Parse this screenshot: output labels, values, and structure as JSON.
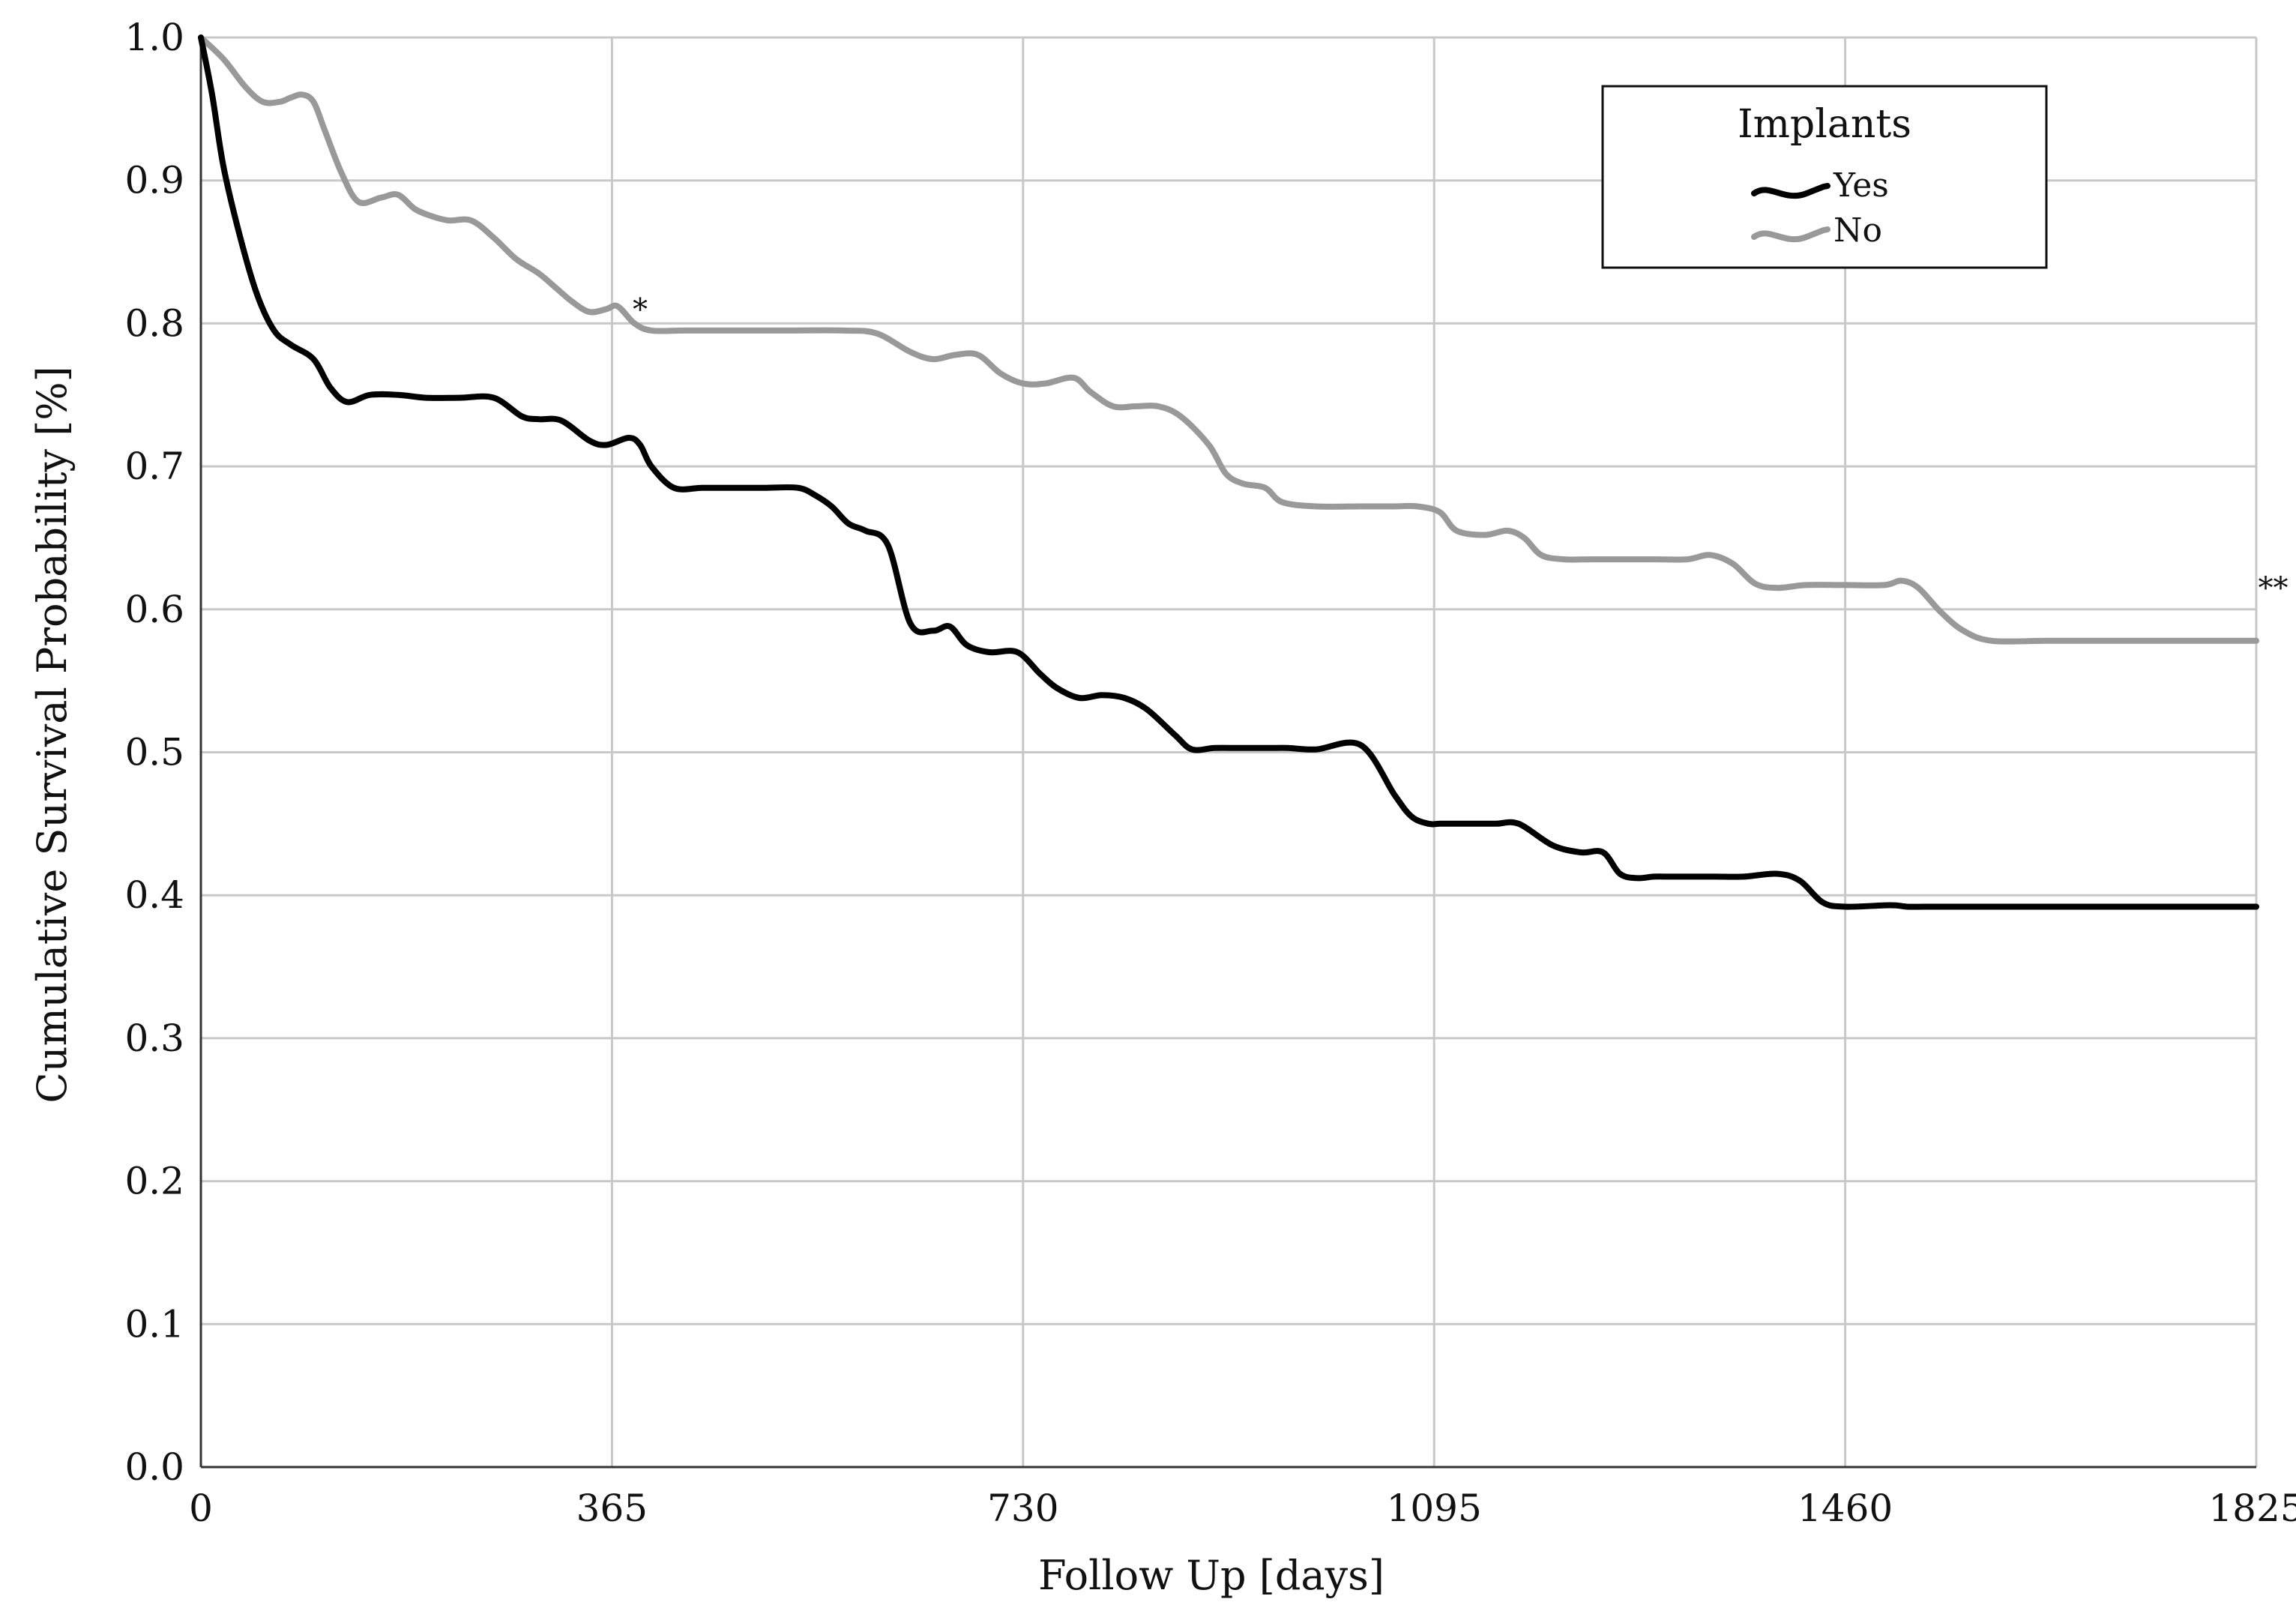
{
  "chart_data": {
    "type": "line",
    "xlabel": "Follow Up [days]",
    "ylabel": "Cumulative Survival Probability [%]",
    "xlim": [
      0,
      1825
    ],
    "ylim": [
      0.0,
      1.0
    ],
    "x_ticks": [
      "0",
      "365",
      "730",
      "1095",
      "1460",
      "1825"
    ],
    "y_ticks": [
      "0.0",
      "0.1",
      "0.2",
      "0.3",
      "0.4",
      "0.5",
      "0.6",
      "0.7",
      "0.8",
      "0.9",
      "1.0"
    ],
    "grid": true,
    "legend": {
      "title": "Implants",
      "position": "top-right"
    },
    "annotations": [
      {
        "text": "*",
        "x": 390,
        "y": 0.81
      },
      {
        "text": "**",
        "x": 1840,
        "y": 0.615
      }
    ],
    "series": [
      {
        "name": "Yes",
        "color": "#000000",
        "x": [
          0,
          10,
          20,
          35,
          50,
          65,
          80,
          100,
          115,
          130,
          150,
          175,
          200,
          230,
          260,
          285,
          300,
          320,
          345,
          360,
          380,
          390,
          400,
          420,
          445,
          470,
          500,
          530,
          545,
          560,
          575,
          590,
          610,
          630,
          650,
          665,
          680,
          700,
          725,
          745,
          760,
          780,
          800,
          820,
          840,
          865,
          880,
          900,
          920,
          935,
          950,
          965,
          990,
          1030,
          1060,
          1075,
          1090,
          1100,
          1110,
          1130,
          1150,
          1170,
          1200,
          1225,
          1245,
          1260,
          1275,
          1290,
          1305,
          1325,
          1345,
          1370,
          1400,
          1420,
          1440,
          1460,
          1500,
          1515,
          1530,
          1545,
          1560,
          1590,
          1640,
          1700,
          1825
        ],
        "y": [
          1.0,
          0.96,
          0.91,
          0.86,
          0.82,
          0.795,
          0.785,
          0.775,
          0.755,
          0.745,
          0.75,
          0.75,
          0.748,
          0.748,
          0.748,
          0.735,
          0.733,
          0.732,
          0.718,
          0.715,
          0.72,
          0.715,
          0.7,
          0.685,
          0.685,
          0.685,
          0.685,
          0.685,
          0.68,
          0.672,
          0.66,
          0.655,
          0.645,
          0.59,
          0.585,
          0.588,
          0.575,
          0.57,
          0.57,
          0.555,
          0.545,
          0.538,
          0.54,
          0.538,
          0.53,
          0.512,
          0.502,
          0.503,
          0.503,
          0.503,
          0.503,
          0.503,
          0.502,
          0.505,
          0.47,
          0.455,
          0.45,
          0.45,
          0.45,
          0.45,
          0.45,
          0.45,
          0.435,
          0.43,
          0.43,
          0.415,
          0.412,
          0.413,
          0.413,
          0.413,
          0.413,
          0.413,
          0.415,
          0.41,
          0.395,
          0.392,
          0.393,
          0.392,
          0.392,
          0.392,
          0.392,
          0.392,
          0.392,
          0.392,
          0.392
        ]
      },
      {
        "name": "No",
        "color": "#999999",
        "x": [
          0,
          20,
          40,
          55,
          70,
          80,
          90,
          100,
          110,
          125,
          140,
          160,
          175,
          190,
          205,
          220,
          240,
          260,
          280,
          300,
          315,
          330,
          345,
          360,
          370,
          385,
          400,
          430,
          470,
          520,
          570,
          600,
          630,
          650,
          670,
          690,
          710,
          730,
          750,
          775,
          790,
          810,
          830,
          850,
          870,
          895,
          910,
          925,
          945,
          960,
          990,
          1030,
          1060,
          1080,
          1100,
          1115,
          1140,
          1160,
          1175,
          1190,
          1210,
          1235,
          1260,
          1290,
          1320,
          1340,
          1360,
          1380,
          1400,
          1425,
          1460,
          1495,
          1510,
          1525,
          1545,
          1565,
          1590,
          1640,
          1700,
          1825
        ],
        "y": [
          1.0,
          0.985,
          0.965,
          0.955,
          0.955,
          0.958,
          0.96,
          0.955,
          0.935,
          0.905,
          0.885,
          0.888,
          0.89,
          0.88,
          0.875,
          0.872,
          0.872,
          0.86,
          0.845,
          0.835,
          0.825,
          0.815,
          0.808,
          0.81,
          0.812,
          0.8,
          0.795,
          0.795,
          0.795,
          0.795,
          0.795,
          0.793,
          0.78,
          0.775,
          0.778,
          0.778,
          0.765,
          0.758,
          0.758,
          0.762,
          0.752,
          0.742,
          0.742,
          0.742,
          0.735,
          0.715,
          0.695,
          0.688,
          0.685,
          0.675,
          0.672,
          0.672,
          0.672,
          0.672,
          0.668,
          0.655,
          0.652,
          0.655,
          0.65,
          0.638,
          0.635,
          0.635,
          0.635,
          0.635,
          0.635,
          0.638,
          0.632,
          0.618,
          0.615,
          0.617,
          0.617,
          0.617,
          0.62,
          0.615,
          0.598,
          0.585,
          0.578,
          0.578,
          0.578,
          0.578
        ]
      }
    ]
  }
}
